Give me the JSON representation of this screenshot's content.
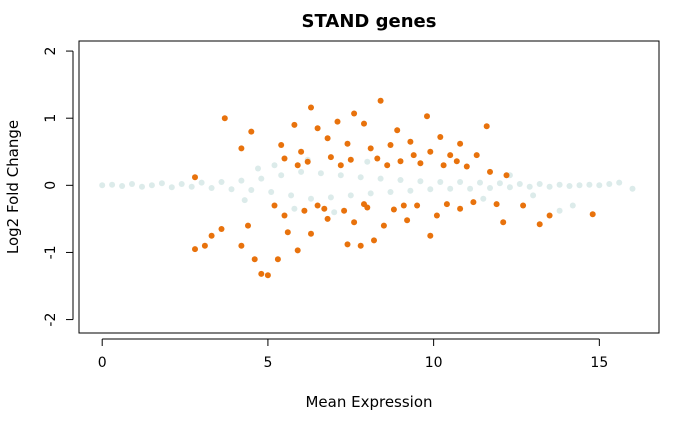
{
  "chart_data": {
    "type": "scatter",
    "title": "STAND genes",
    "xlabel": "Mean Expression",
    "ylabel": "Log2 Fold Change",
    "xlim": [
      -0.7,
      16.8
    ],
    "ylim": [
      -2.2,
      2.15
    ],
    "xticks": [
      "0",
      "5",
      "10",
      "15"
    ],
    "yticks": [
      "-2",
      "-1",
      "0",
      "1",
      "2"
    ],
    "grid": false,
    "legend": "none",
    "series": [
      {
        "role": "not significant",
        "color": "#dcebea",
        "points": [
          [
            0.0,
            0.0
          ],
          [
            0.3,
            0.01
          ],
          [
            0.6,
            -0.01
          ],
          [
            0.9,
            0.02
          ],
          [
            1.2,
            -0.02
          ],
          [
            1.5,
            0.0
          ],
          [
            1.8,
            0.03
          ],
          [
            2.1,
            -0.03
          ],
          [
            2.4,
            0.02
          ],
          [
            2.7,
            -0.02
          ],
          [
            3.0,
            0.04
          ],
          [
            3.3,
            -0.04
          ],
          [
            3.6,
            0.05
          ],
          [
            3.9,
            -0.06
          ],
          [
            4.2,
            0.07
          ],
          [
            4.5,
            -0.07
          ],
          [
            4.8,
            0.1
          ],
          [
            5.1,
            -0.1
          ],
          [
            5.4,
            0.15
          ],
          [
            5.7,
            -0.15
          ],
          [
            6.0,
            0.2
          ],
          [
            6.3,
            -0.2
          ],
          [
            6.6,
            0.18
          ],
          [
            6.9,
            -0.18
          ],
          [
            7.2,
            0.15
          ],
          [
            7.5,
            -0.15
          ],
          [
            7.8,
            0.12
          ],
          [
            8.1,
            -0.12
          ],
          [
            8.4,
            0.1
          ],
          [
            8.7,
            -0.1
          ],
          [
            9.0,
            0.08
          ],
          [
            9.3,
            -0.08
          ],
          [
            9.6,
            0.06
          ],
          [
            9.9,
            -0.06
          ],
          [
            10.2,
            0.05
          ],
          [
            10.5,
            -0.05
          ],
          [
            10.8,
            0.05
          ],
          [
            11.1,
            -0.05
          ],
          [
            11.4,
            0.04
          ],
          [
            11.7,
            -0.04
          ],
          [
            12.0,
            0.03
          ],
          [
            12.3,
            -0.03
          ],
          [
            12.6,
            0.02
          ],
          [
            12.9,
            -0.02
          ],
          [
            13.2,
            0.02
          ],
          [
            13.5,
            -0.02
          ],
          [
            13.8,
            0.01
          ],
          [
            14.1,
            -0.01
          ],
          [
            14.4,
            0.0
          ],
          [
            14.7,
            0.01
          ],
          [
            15.0,
            0.0
          ],
          [
            15.3,
            0.02
          ],
          [
            15.6,
            0.04
          ],
          [
            16.0,
            -0.05
          ],
          [
            12.3,
            0.15
          ],
          [
            13.0,
            -0.15
          ],
          [
            13.8,
            -0.38
          ],
          [
            14.2,
            -0.3
          ],
          [
            11.5,
            -0.2
          ],
          [
            5.2,
            0.3
          ],
          [
            5.8,
            -0.35
          ],
          [
            4.7,
            0.25
          ],
          [
            4.3,
            -0.22
          ],
          [
            6.2,
            0.38
          ],
          [
            7.0,
            -0.4
          ],
          [
            8.0,
            0.35
          ]
        ]
      },
      {
        "role": "significant",
        "color": "#e8720c",
        "points": [
          [
            6.3,
            1.16
          ],
          [
            8.4,
            1.26
          ],
          [
            7.6,
            1.07
          ],
          [
            9.8,
            1.03
          ],
          [
            11.6,
            0.88
          ],
          [
            3.7,
            1.0
          ],
          [
            4.5,
            0.8
          ],
          [
            5.8,
            0.9
          ],
          [
            6.5,
            0.85
          ],
          [
            7.1,
            0.95
          ],
          [
            7.9,
            0.92
          ],
          [
            8.9,
            0.82
          ],
          [
            10.2,
            0.72
          ],
          [
            10.8,
            0.62
          ],
          [
            11.3,
            0.45
          ],
          [
            12.2,
            0.15
          ],
          [
            4.2,
            0.55
          ],
          [
            2.8,
            0.12
          ],
          [
            5.4,
            0.6
          ],
          [
            6.0,
            0.5
          ],
          [
            6.8,
            0.7
          ],
          [
            7.4,
            0.62
          ],
          [
            8.1,
            0.55
          ],
          [
            8.7,
            0.6
          ],
          [
            9.3,
            0.65
          ],
          [
            9.9,
            0.5
          ],
          [
            10.5,
            0.45
          ],
          [
            5.5,
            0.4
          ],
          [
            6.2,
            0.35
          ],
          [
            6.9,
            0.42
          ],
          [
            7.5,
            0.38
          ],
          [
            8.3,
            0.4
          ],
          [
            9.0,
            0.36
          ],
          [
            9.6,
            0.33
          ],
          [
            10.3,
            0.3
          ],
          [
            11.0,
            0.28
          ],
          [
            5.9,
            0.3
          ],
          [
            7.2,
            0.3
          ],
          [
            8.6,
            0.3
          ],
          [
            9.4,
            0.45
          ],
          [
            10.7,
            0.36
          ],
          [
            11.7,
            0.2
          ],
          [
            2.8,
            -0.95
          ],
          [
            3.1,
            -0.9
          ],
          [
            3.3,
            -0.75
          ],
          [
            4.2,
            -0.9
          ],
          [
            4.6,
            -1.1
          ],
          [
            4.8,
            -1.32
          ],
          [
            5.0,
            -1.34
          ],
          [
            5.3,
            -1.1
          ],
          [
            5.9,
            -0.97
          ],
          [
            3.6,
            -0.65
          ],
          [
            4.4,
            -0.6
          ],
          [
            5.6,
            -0.7
          ],
          [
            6.3,
            -0.72
          ],
          [
            7.4,
            -0.88
          ],
          [
            7.8,
            -0.9
          ],
          [
            8.2,
            -0.82
          ],
          [
            9.9,
            -0.75
          ],
          [
            14.8,
            -0.43
          ],
          [
            13.5,
            -0.45
          ],
          [
            13.2,
            -0.58
          ],
          [
            12.1,
            -0.55
          ],
          [
            12.7,
            -0.3
          ],
          [
            11.9,
            -0.28
          ],
          [
            6.8,
            -0.5
          ],
          [
            7.6,
            -0.55
          ],
          [
            8.5,
            -0.6
          ],
          [
            9.2,
            -0.52
          ],
          [
            10.1,
            -0.45
          ],
          [
            10.8,
            -0.35
          ],
          [
            5.5,
            -0.45
          ],
          [
            6.1,
            -0.38
          ],
          [
            6.7,
            -0.35
          ],
          [
            7.3,
            -0.38
          ],
          [
            8.0,
            -0.33
          ],
          [
            8.8,
            -0.36
          ],
          [
            9.5,
            -0.3
          ],
          [
            10.4,
            -0.28
          ],
          [
            11.2,
            -0.25
          ],
          [
            5.2,
            -0.3
          ],
          [
            6.5,
            -0.3
          ],
          [
            7.9,
            -0.28
          ],
          [
            9.1,
            -0.3
          ]
        ]
      }
    ]
  }
}
